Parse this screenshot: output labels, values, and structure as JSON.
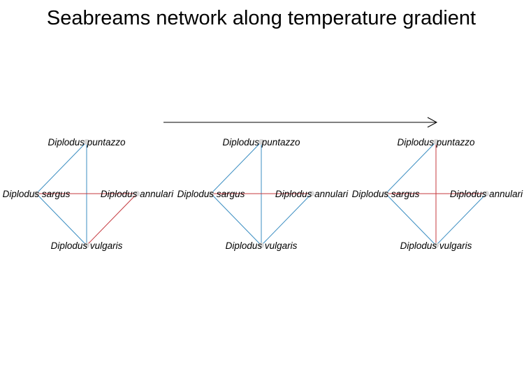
{
  "title": "Seabreams network along temperature gradient",
  "arrow": {
    "meaning": "temperature-gradient-arrow"
  },
  "colors": {
    "positive_edge": "#3b8ec2",
    "negative_edge": "#c4383e",
    "node": "#d9d9d9",
    "text": "#000000"
  },
  "nodes": [
    {
      "id": "puntazzo",
      "label": "Diplodus puntazzo"
    },
    {
      "id": "sargus",
      "label": "Diplodus sargus"
    },
    {
      "id": "annulari",
      "label": "Diplodus annulari"
    },
    {
      "id": "vulgaris",
      "label": "Diplodus vulgaris"
    }
  ],
  "networks": [
    {
      "name": "network-1",
      "edges": [
        {
          "from": "puntazzo",
          "to": "sargus",
          "sign": "positive"
        },
        {
          "from": "puntazzo",
          "to": "vulgaris",
          "sign": "positive"
        },
        {
          "from": "sargus",
          "to": "annulari",
          "sign": "negative"
        },
        {
          "from": "sargus",
          "to": "vulgaris",
          "sign": "positive"
        },
        {
          "from": "annulari",
          "to": "vulgaris",
          "sign": "negative"
        }
      ]
    },
    {
      "name": "network-2",
      "edges": [
        {
          "from": "puntazzo",
          "to": "sargus",
          "sign": "positive"
        },
        {
          "from": "puntazzo",
          "to": "vulgaris",
          "sign": "positive"
        },
        {
          "from": "sargus",
          "to": "annulari",
          "sign": "negative"
        },
        {
          "from": "sargus",
          "to": "vulgaris",
          "sign": "positive"
        },
        {
          "from": "annulari",
          "to": "vulgaris",
          "sign": "positive"
        }
      ]
    },
    {
      "name": "network-3",
      "edges": [
        {
          "from": "puntazzo",
          "to": "sargus",
          "sign": "positive"
        },
        {
          "from": "puntazzo",
          "to": "vulgaris",
          "sign": "negative"
        },
        {
          "from": "sargus",
          "to": "annulari",
          "sign": "negative"
        },
        {
          "from": "sargus",
          "to": "vulgaris",
          "sign": "positive"
        },
        {
          "from": "annulari",
          "to": "vulgaris",
          "sign": "positive"
        }
      ]
    }
  ]
}
